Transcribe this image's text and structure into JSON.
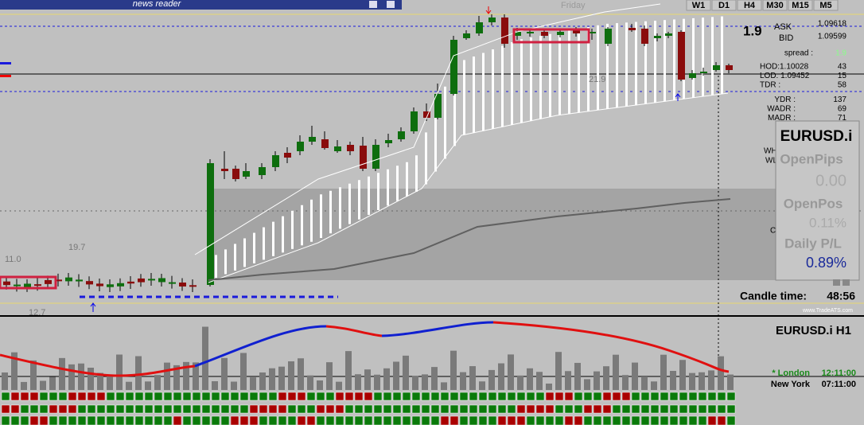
{
  "header": {
    "title": "news reader"
  },
  "toolbar": {
    "timeframes": [
      "W1",
      "D1",
      "H4",
      "M30",
      "M15",
      "M5"
    ]
  },
  "chart": {
    "day_label": "Friday",
    "spread_big": "1.9",
    "levels": [
      "21.9",
      "19.7",
      "11.0",
      "12.7"
    ],
    "watermark": "www.TradeATS.com",
    "side_labels": [
      "WH",
      "WL",
      "C"
    ]
  },
  "quote": {
    "ask_label": "ASK",
    "ask": "1.09618",
    "bid_label": "BID",
    "bid": "1.09599",
    "spread_label": "spread :",
    "spread": "1.9",
    "rows": [
      [
        "HOD:1.10028",
        "43"
      ],
      [
        "LOD: 1.09452",
        "15"
      ],
      [
        "TDR :",
        "58"
      ],
      [
        "YDR :",
        "137"
      ],
      [
        "WADR :",
        "69"
      ],
      [
        "MADR :",
        "71"
      ]
    ]
  },
  "account": {
    "symbol": "EURUSD.i",
    "open_pips_label": "OpenPips",
    "open_pips": "0.00",
    "open_pos_label": "OpenPos",
    "open_pos": "0.11%",
    "daily_label": "Daily P/L",
    "daily": "0.89%"
  },
  "candle_time": {
    "label": "Candle time:",
    "value": "48:56"
  },
  "indicator": {
    "title": "EURUSD.i  H1",
    "sessions": [
      [
        "* London",
        "12:11:00"
      ],
      [
        "New York",
        "07:11:00"
      ]
    ]
  }
}
